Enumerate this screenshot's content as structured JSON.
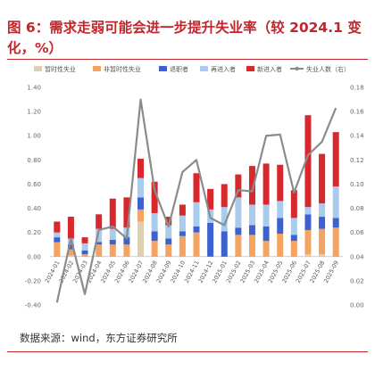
{
  "title": "图 6：需求走弱可能会进一步提升失业率（较 2024.1 变化，%）",
  "source": "数据来源：wind，东方证券研究所",
  "chart_data": {
    "type": "bar",
    "stacked": true,
    "categories": [
      "2024-01",
      "2024-02",
      "2024-03",
      "2024-04",
      "2024-05",
      "2024-06",
      "2024-07",
      "2024-08",
      "2024-09",
      "2024-10",
      "2024-11",
      "2024-12",
      "2025-01",
      "2025-02",
      "2025-03",
      "2025-04",
      "2025-05",
      "2025-06",
      "2025-07",
      "2025-08",
      "2025-09"
    ],
    "ylim": [
      -0.4,
      1.4
    ],
    "y_ticks": [
      "-0.40",
      "-0.20",
      "0.00",
      "0.20",
      "0.40",
      "0.60",
      "0.80",
      "1.00",
      "1.20",
      "1.40"
    ],
    "y2lim": [
      0.0,
      0.18
    ],
    "y2_ticks": [
      "0.00",
      "0.02",
      "0.04",
      "0.06",
      "0.08",
      "0.10",
      "0.12",
      "0.14",
      "0.16",
      "0.18"
    ],
    "legend_position": "top",
    "series": [
      {
        "name": "暂时性失业",
        "color": "#dcd0b4",
        "values": [
          0.0,
          0.01,
          0.0,
          0.0,
          0.0,
          0.0,
          0.29,
          0.0,
          0.0,
          0.0,
          0.0,
          0.0,
          0.0,
          0.0,
          0.0,
          0.0,
          0.0,
          0.0,
          0.02,
          0.02,
          0.0
        ]
      },
      {
        "name": "非暂时性失业",
        "color": "#f4a361",
        "values": [
          0.12,
          0.05,
          0.02,
          0.1,
          0.1,
          0.1,
          0.1,
          0.13,
          0.1,
          0.17,
          0.2,
          0.0,
          0.0,
          0.18,
          0.18,
          0.13,
          0.19,
          0.13,
          0.2,
          0.21,
          0.24
        ]
      },
      {
        "name": "退职者",
        "color": "#3d62d0",
        "values": [
          0.04,
          0.04,
          0.03,
          0.02,
          0.04,
          0.06,
          0.1,
          0.08,
          0.05,
          0.04,
          0.05,
          0.28,
          0.21,
          0.06,
          0.08,
          0.12,
          0.13,
          0.05,
          0.13,
          0.1,
          0.08
        ]
      },
      {
        "name": "再进入者",
        "color": "#a9ccee",
        "values": [
          0.04,
          0.05,
          0.06,
          0.11,
          0.09,
          0.08,
          0.16,
          0.15,
          0.11,
          0.13,
          0.2,
          0.11,
          0.2,
          0.25,
          0.17,
          0.18,
          0.14,
          0.14,
          0.06,
          0.11,
          0.26
        ]
      },
      {
        "name": "新进入者",
        "color": "#d7282e",
        "values": [
          0.09,
          0.18,
          0.05,
          0.12,
          0.25,
          0.25,
          0.16,
          0.26,
          0.07,
          0.09,
          0.24,
          0.17,
          0.19,
          0.19,
          0.32,
          0.34,
          0.3,
          0.23,
          0.76,
          0.41,
          0.45
        ]
      }
    ],
    "line": {
      "name": "失业人数（右）",
      "color": "#8b8b8b",
      "axis": "right",
      "values": [
        0.002,
        0.055,
        0.009,
        0.062,
        0.065,
        0.055,
        0.17,
        0.095,
        0.065,
        0.11,
        0.12,
        0.072,
        0.066,
        0.095,
        0.094,
        0.14,
        0.141,
        0.093,
        0.124,
        0.135,
        0.163
      ]
    }
  }
}
